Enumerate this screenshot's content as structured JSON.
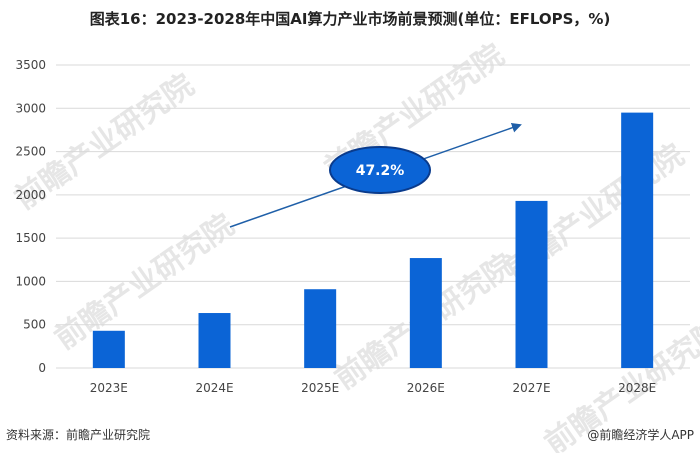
{
  "chart_data": {
    "type": "bar",
    "title": "图表16：2023-2028年中国AI算力产业市场前景预测(单位：EFLOPS，%)",
    "categories": [
      "2023E",
      "2024E",
      "2025E",
      "2026E",
      "2027E",
      "2028E"
    ],
    "values": [
      430,
      635,
      910,
      1270,
      1930,
      2950
    ],
    "ylim": [
      0,
      3500
    ],
    "yticks": [
      0,
      500,
      1000,
      1500,
      2000,
      2500,
      3000,
      3500
    ],
    "grid": true,
    "bar_color": "#0b64d6",
    "annotation": {
      "label": "47.2%",
      "fill": "#0b64d6",
      "stroke": "#0a3b8c"
    }
  },
  "footer": {
    "source": "资料来源：前瞻产业研究院",
    "brand": "@前瞻经济学人APP"
  },
  "watermark": "前瞻产业研究院"
}
